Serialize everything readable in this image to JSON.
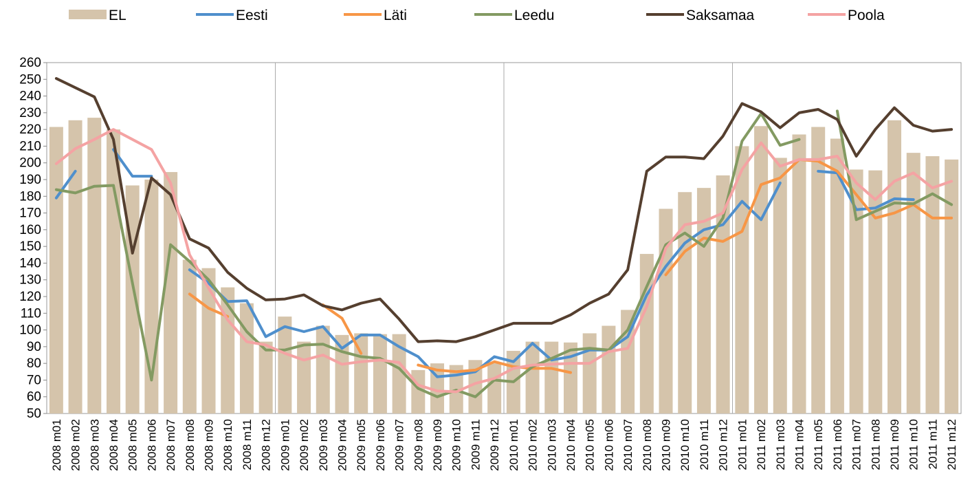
{
  "chart_data": {
    "type": "combo",
    "categories": [
      "2008 m01",
      "2008 m02",
      "2008 m03",
      "2008 m04",
      "2008 m05",
      "2008 m06",
      "2008 m07",
      "2008 m08",
      "2008 m09",
      "2008 m10",
      "2008 m11",
      "2008 m12",
      "2009 m01",
      "2009 m02",
      "2009 m03",
      "2009 m04",
      "2009 m05",
      "2009 m06",
      "2009 m07",
      "2009 m08",
      "2009 m09",
      "2009 m10",
      "2009 m11",
      "2009 m12",
      "2010 m01",
      "2010 m02",
      "2010 m03",
      "2010 m04",
      "2010 m05",
      "2010 m06",
      "2010 m07",
      "2010 m08",
      "2010 m09",
      "2010 m10",
      "2010 m11",
      "2010 m12",
      "2011 m01",
      "2011 m02",
      "2011 m03",
      "2011 m04",
      "2011 m05",
      "2011 m06",
      "2011 m07",
      "2011 m08",
      "2011 m09",
      "2011 m10",
      "2011 m11",
      "2011 m12"
    ],
    "series": [
      {
        "name": "EL",
        "kind": "bar",
        "color": "#d5c4ab",
        "values": [
          221.5,
          225.5,
          227,
          220,
          186.5,
          190,
          194.5,
          142,
          137,
          125.5,
          116,
          93,
          108,
          93,
          102.5,
          97,
          98,
          97.5,
          97.5,
          76,
          80,
          79,
          82,
          80,
          87.5,
          93,
          93,
          92.5,
          98,
          102.5,
          112,
          145.5,
          172.5,
          182.5,
          185,
          192.5,
          210,
          222,
          203,
          217,
          221.5,
          214.5,
          196,
          195.5,
          225.5,
          206,
          204,
          202
        ]
      },
      {
        "name": "Eesti",
        "kind": "line",
        "color": "#4f8fcc",
        "values": [
          179,
          195,
          null,
          208,
          192,
          192,
          null,
          136,
          128,
          117,
          117.5,
          96,
          102,
          99,
          102,
          89,
          97,
          97,
          90,
          84,
          72,
          73,
          75,
          84,
          81,
          92,
          82,
          84,
          88,
          88,
          96,
          121,
          138,
          152,
          160,
          163,
          177,
          166,
          188,
          null,
          195,
          194,
          172,
          173,
          178.5,
          178,
          null,
          null
        ]
      },
      {
        "name": "Läti",
        "kind": "line",
        "color": "#f79646",
        "values": [
          null,
          null,
          null,
          null,
          null,
          null,
          null,
          121.5,
          113,
          108,
          null,
          null,
          null,
          null,
          115,
          107,
          86,
          null,
          null,
          79,
          76,
          75,
          76,
          81,
          78,
          77,
          77,
          74.5,
          null,
          null,
          null,
          null,
          133,
          147,
          155,
          153,
          159,
          187,
          191,
          202,
          201,
          195,
          181,
          167,
          170,
          175,
          167,
          167
        ]
      },
      {
        "name": "Leedu",
        "kind": "line",
        "color": "#839a62",
        "values": [
          184,
          182,
          186,
          186.5,
          128,
          70,
          151,
          141,
          130,
          115,
          99,
          88,
          88,
          91,
          91.5,
          87,
          84,
          83,
          77,
          65,
          60,
          64,
          60,
          70,
          69,
          78,
          83,
          88,
          89,
          88,
          100,
          126,
          151,
          158,
          150,
          167,
          213,
          229.5,
          210.5,
          214,
          null,
          231,
          166,
          171,
          176,
          175.5,
          181.5,
          175
        ]
      },
      {
        "name": "Saksamaa",
        "kind": "line",
        "color": "#553f2f",
        "values": [
          250.5,
          245,
          239.5,
          214,
          146,
          191,
          181,
          154.5,
          149,
          134.5,
          125,
          118,
          118.5,
          121,
          114.5,
          112,
          116,
          118.5,
          106.5,
          93,
          93.5,
          93,
          96,
          100,
          104,
          104,
          104,
          109,
          116,
          121.5,
          136,
          195,
          203.5,
          203.5,
          202.5,
          216,
          235.5,
          230.5,
          221,
          230,
          232,
          226,
          204,
          220,
          233,
          222.5,
          219,
          220
        ]
      },
      {
        "name": "Poola",
        "kind": "line",
        "color": "#f4a3a3",
        "values": [
          199.5,
          208.5,
          214,
          220,
          214,
          208,
          188,
          145,
          125,
          106,
          93,
          91,
          86,
          82,
          85,
          79.5,
          81,
          82,
          80.5,
          67,
          63.5,
          63,
          68,
          71,
          77,
          79,
          79.5,
          80,
          80,
          87,
          89,
          114,
          149,
          163,
          165,
          170,
          196,
          212,
          198,
          202,
          202,
          204,
          188,
          178,
          189,
          194,
          185,
          189
        ]
      }
    ],
    "ylim": [
      50,
      260
    ],
    "yticks": [
      50,
      60,
      70,
      80,
      90,
      100,
      110,
      120,
      130,
      140,
      150,
      160,
      170,
      180,
      190,
      200,
      210,
      220,
      230,
      240,
      250,
      260
    ]
  }
}
